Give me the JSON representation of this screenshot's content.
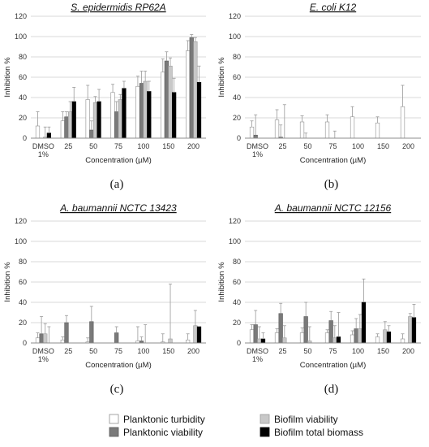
{
  "chart_data": [
    {
      "type": "bar",
      "panel_label": "(a)",
      "title": "S. epidermidis RP62A",
      "ylabel": "Inhibition %",
      "xlabel": "Concentration (µM)",
      "ylim": [
        0,
        120
      ],
      "yticks": [
        0,
        20,
        40,
        60,
        80,
        100,
        120
      ],
      "categories": [
        "DMSO\n1%",
        "25",
        "50",
        "75",
        "100",
        "150",
        "200"
      ],
      "series": [
        {
          "name": "Planktonic turbidity",
          "values": [
            12,
            17,
            38,
            45,
            51,
            65,
            86
          ],
          "errors": [
            14,
            9,
            14,
            8,
            10,
            13,
            10
          ]
        },
        {
          "name": "Planktonic viability",
          "values": [
            0,
            21,
            8,
            26,
            54,
            76,
            99
          ],
          "errors": [
            0,
            5,
            9,
            10,
            12,
            9,
            3
          ]
        },
        {
          "name": "Biofilm viability",
          "values": [
            1,
            26,
            35,
            38,
            56,
            71,
            95
          ],
          "errors": [
            10,
            10,
            6,
            5,
            10,
            8,
            4
          ]
        },
        {
          "name": "Biofilm total biomass",
          "values": [
            5,
            36,
            36,
            49,
            46,
            45,
            55
          ],
          "errors": [
            6,
            14,
            12,
            7,
            10,
            14,
            16
          ]
        }
      ]
    },
    {
      "type": "bar",
      "panel_label": "(b)",
      "title": "E. coli K12",
      "ylabel": "Inhibition %",
      "xlabel": "Concentration (µM)",
      "ylim": [
        0,
        120
      ],
      "yticks": [
        0,
        20,
        40,
        60,
        80,
        100,
        120
      ],
      "categories": [
        "DMSO\n1%",
        "25",
        "50",
        "75",
        "100",
        "150",
        "200"
      ],
      "series": [
        {
          "name": "Planktonic turbidity",
          "values": [
            11,
            18,
            16,
            16,
            21,
            15,
            31
          ],
          "errors": [
            6,
            10,
            6,
            7,
            10,
            6,
            21
          ]
        },
        {
          "name": "Planktonic viability",
          "values": [
            3,
            1,
            0,
            0,
            0,
            0,
            0
          ],
          "errors": [
            20,
            12,
            5,
            0,
            0,
            0,
            0
          ]
        },
        {
          "name": "Biofilm viability",
          "values": [
            0,
            0,
            0,
            0,
            0,
            0,
            0
          ],
          "errors": [
            0,
            33,
            0,
            7,
            0,
            0,
            0
          ]
        },
        {
          "name": "Biofilm total biomass",
          "values": [
            0,
            0,
            0,
            0,
            0,
            0,
            0
          ],
          "errors": [
            0,
            0,
            0,
            0,
            0,
            0,
            0
          ]
        }
      ]
    },
    {
      "type": "bar",
      "panel_label": "(c)",
      "title": "A. baumannii NCTC 13423",
      "ylabel": "Inhibition %",
      "xlabel": "Concentration (µM)",
      "ylim": [
        0,
        120
      ],
      "yticks": [
        0,
        20,
        40,
        60,
        80,
        100,
        120
      ],
      "categories": [
        "DMSO\n1%",
        "25",
        "50",
        "75",
        "100",
        "150",
        "200"
      ],
      "series": [
        {
          "name": "Planktonic turbidity",
          "values": [
            5,
            3,
            1,
            0,
            2,
            1,
            3
          ],
          "errors": [
            5,
            3,
            4,
            0,
            14,
            8,
            6
          ]
        },
        {
          "name": "Planktonic viability",
          "values": [
            9,
            20,
            21,
            10,
            2,
            0,
            0
          ],
          "errors": [
            17,
            7,
            15,
            6,
            4,
            0,
            0
          ]
        },
        {
          "name": "Biofilm viability",
          "values": [
            9,
            0,
            0,
            0,
            0,
            4,
            17
          ],
          "errors": [
            10,
            0,
            0,
            0,
            18,
            54,
            15
          ]
        },
        {
          "name": "Biofilm total biomass",
          "values": [
            0,
            0,
            0,
            0,
            0,
            0,
            16
          ],
          "errors": [
            16,
            0,
            0,
            0,
            0,
            0,
            0
          ]
        }
      ]
    },
    {
      "type": "bar",
      "panel_label": "(d)",
      "title": "A. baumannii NCTC 12156",
      "ylabel": "Inhibition %",
      "xlabel": "Concentration (µM)",
      "ylim": [
        0,
        120
      ],
      "yticks": [
        0,
        20,
        40,
        60,
        80,
        100,
        120
      ],
      "categories": [
        "DMSO\n1%",
        "25",
        "50",
        "75",
        "100",
        "150",
        "200"
      ],
      "series": [
        {
          "name": "Planktonic turbidity",
          "values": [
            13,
            10,
            10,
            10,
            8,
            6,
            4
          ],
          "errors": [
            5,
            4,
            5,
            3,
            4,
            3,
            5
          ]
        },
        {
          "name": "Planktonic viability",
          "values": [
            18,
            29,
            26,
            22,
            14,
            0,
            0
          ],
          "errors": [
            14,
            10,
            14,
            9,
            10,
            0,
            0
          ]
        },
        {
          "name": "Biofilm viability",
          "values": [
            4,
            5,
            2,
            5,
            14,
            13,
            26
          ],
          "errors": [
            12,
            12,
            14,
            12,
            14,
            8,
            3
          ]
        },
        {
          "name": "Biofilm total biomass",
          "values": [
            4,
            0,
            0,
            6,
            40,
            11,
            25
          ],
          "errors": [
            6,
            0,
            0,
            24,
            23,
            6,
            13
          ]
        }
      ]
    }
  ],
  "legend": [
    {
      "label": "Planktonic turbidity",
      "fill": "#ffffff"
    },
    {
      "label": "Planktonic viability",
      "fill": "#7a7a7a"
    },
    {
      "label": "Biofilm viability",
      "fill": "#c8c8c8"
    },
    {
      "label": "Biofilm total biomass",
      "fill": "#000000"
    }
  ],
  "colors": {
    "planktonic_turbidity": "#ffffff",
    "planktonic_viability": "#7a7a7a",
    "biofilm_viability": "#c8c8c8",
    "biofilm_total_biomass": "#000000",
    "gridline": "#d9d9d9",
    "axis": "#8c8c8c",
    "error_bar": "#9a9a9a"
  }
}
